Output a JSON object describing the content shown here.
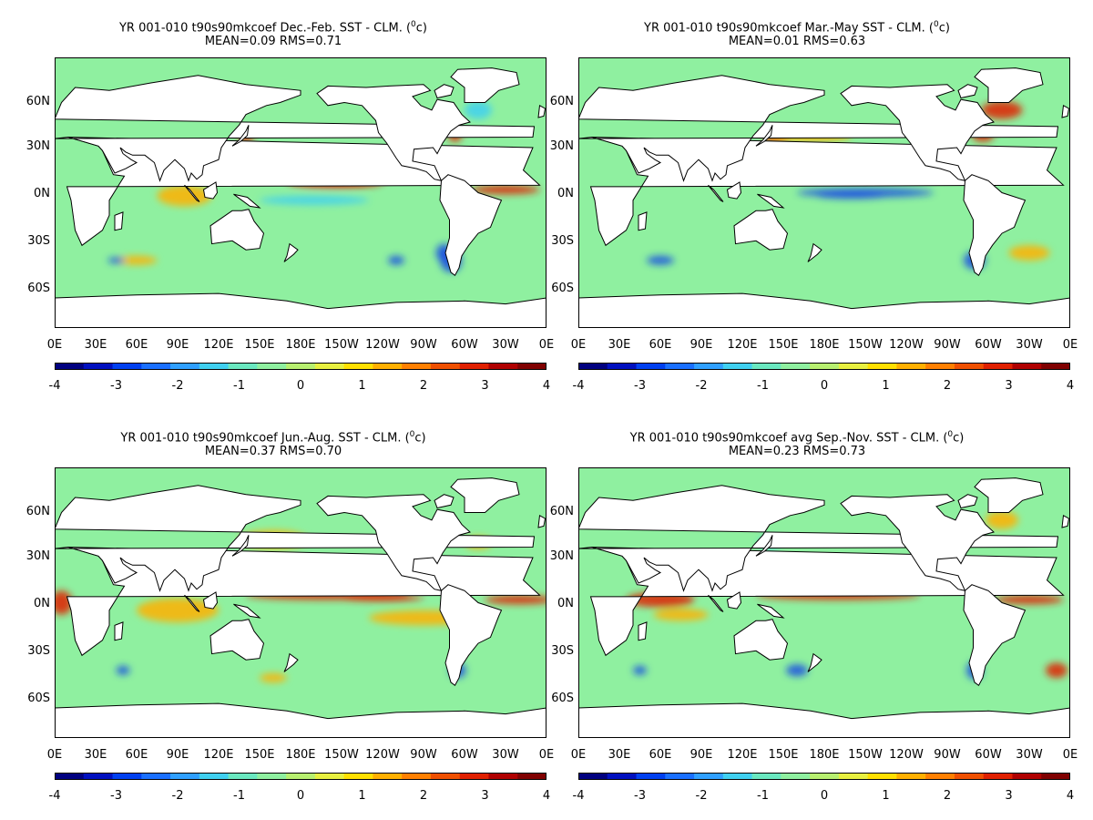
{
  "panels": [
    {
      "title_main": "YR 001-010 t90s90mkcoef  Dec.-Feb. SST - CLM. (",
      "title_sup": "0",
      "title_end": "c)",
      "stats": "MEAN=0.09   RMS=0.71"
    },
    {
      "title_main": "YR 001-010 t90s90mkcoef Mar.-May SST - CLM. (",
      "title_sup": "0",
      "title_end": "c)",
      "stats": "MEAN=0.01   RMS=0.63"
    },
    {
      "title_main": "YR 001-010 t90s90mkcoef Jun.-Aug. SST - CLM. (",
      "title_sup": "0",
      "title_end": "c)",
      "stats": "MEAN=0.37   RMS=0.70"
    },
    {
      "title_main": "YR 001-010 t90s90mkcoef avg Sep.-Nov. SST - CLM. (",
      "title_sup": "0",
      "title_end": "c)",
      "stats": "MEAN=0.23   RMS=0.73"
    }
  ],
  "lat_labels": [
    "60N",
    "30N",
    "0N",
    "30S",
    "60S"
  ],
  "lon_labels": [
    "0E",
    "30E",
    "60E",
    "90E",
    "120E",
    "150E",
    "180E",
    "150W",
    "120W",
    "90W",
    "60W",
    "30W",
    "0E"
  ],
  "colorbar": {
    "tick_labels": [
      "-4",
      "-3",
      "-2",
      "-1",
      "0",
      "1",
      "2",
      "3",
      "4"
    ],
    "colors": [
      "#000080",
      "#0010c0",
      "#0040f0",
      "#1a70ff",
      "#30a0ff",
      "#40d0f0",
      "#6ae8c0",
      "#8ff0a0",
      "#b8f070",
      "#e8f040",
      "#ffe000",
      "#ffb000",
      "#ff8000",
      "#f05000",
      "#e02000",
      "#b00000",
      "#800000"
    ]
  },
  "map_colors": {
    "ocean": "#8ff0a0",
    "land": "#ffffff",
    "coast": "#000000",
    "warm": "#ffb000",
    "hot": "#e02000",
    "cool": "#40d0f0",
    "cold": "#1a50e0"
  }
}
